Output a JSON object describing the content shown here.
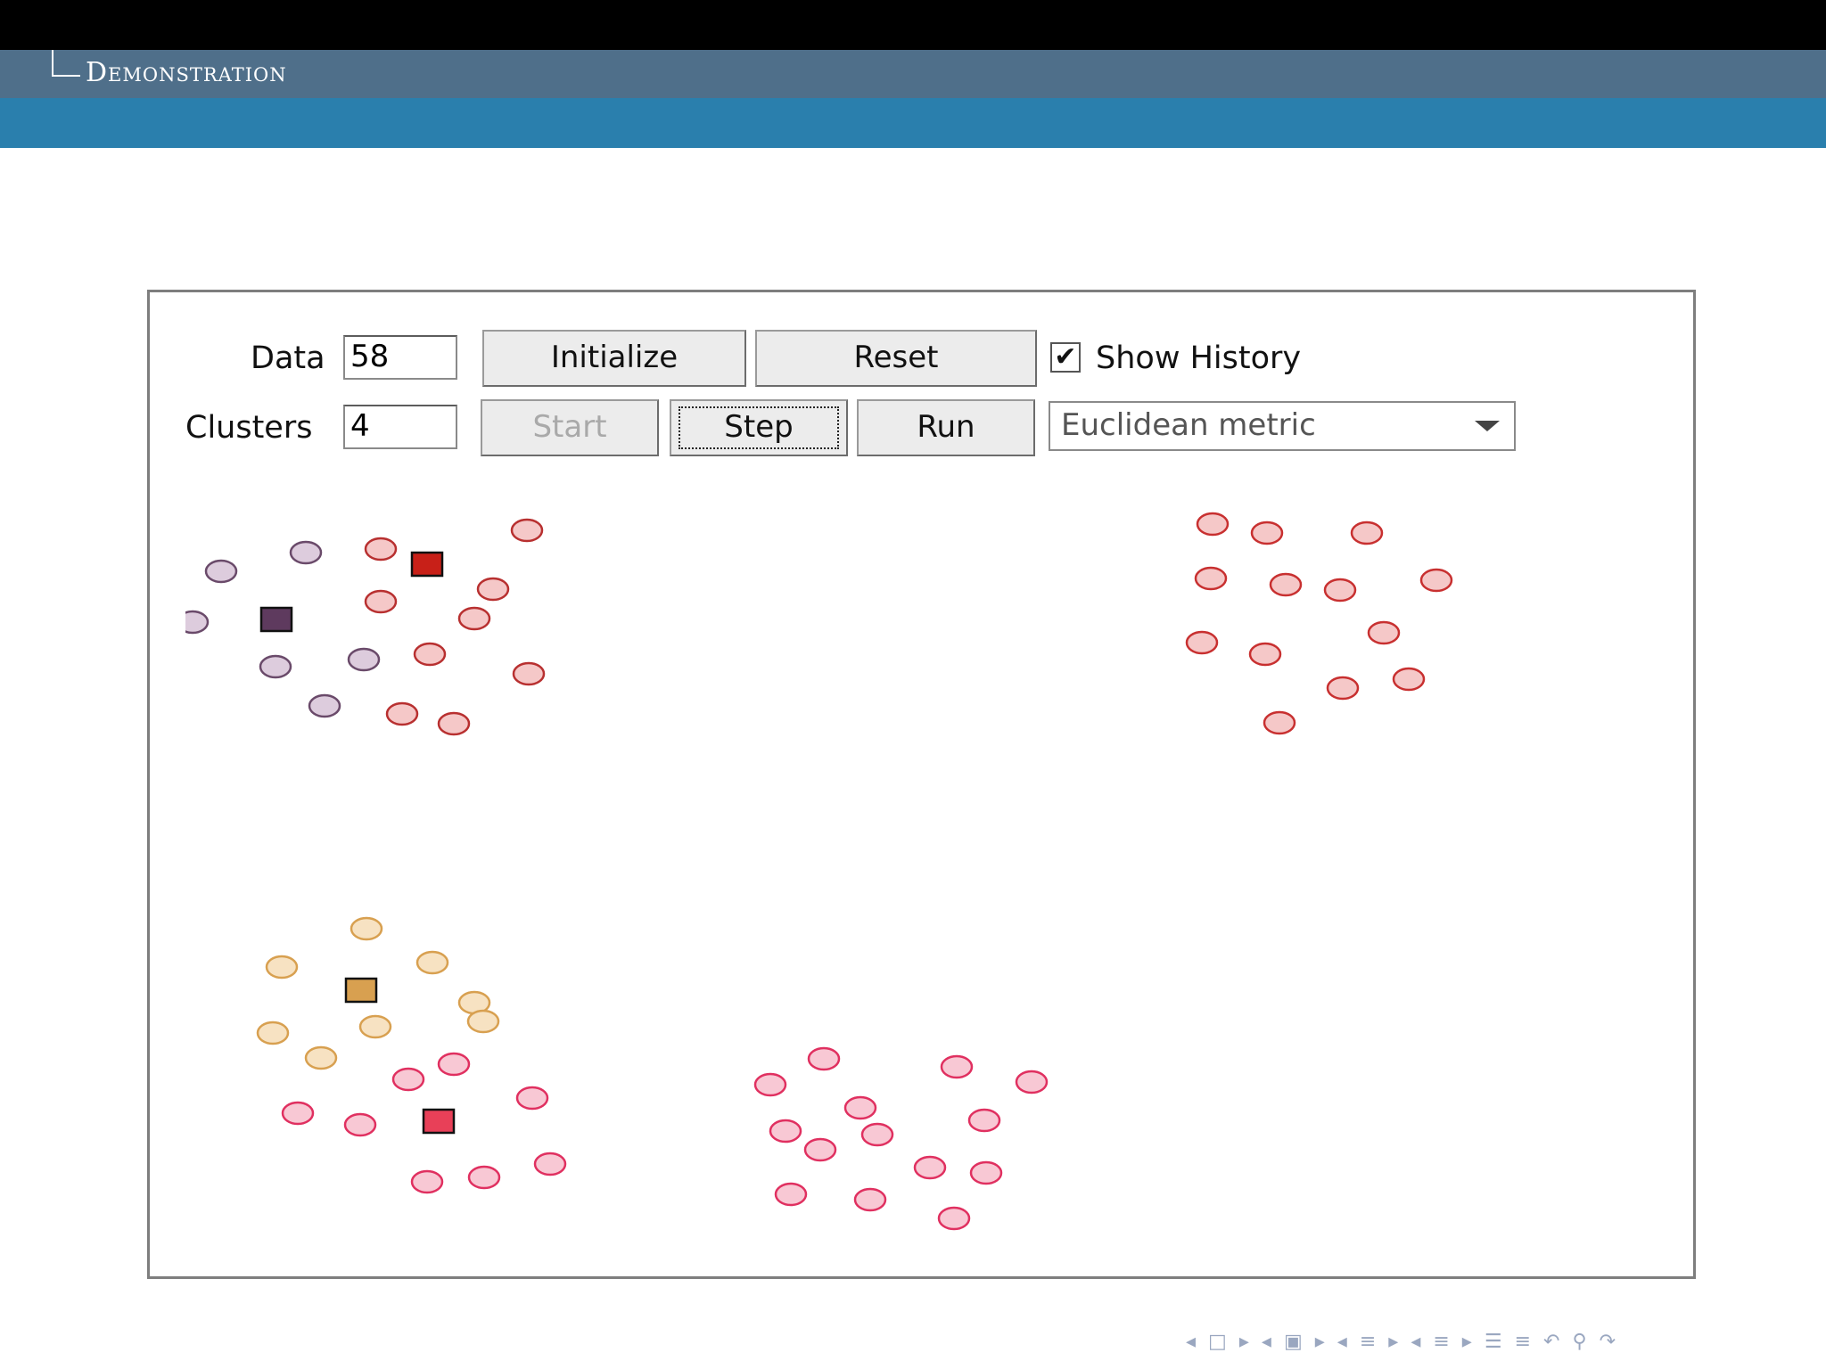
{
  "header": {
    "section_title": "Demonstration"
  },
  "controls": {
    "data_label": "Data",
    "data_value": "58",
    "clusters_label": "Clusters",
    "clusters_value": "4",
    "initialize_label": "Initialize",
    "reset_label": "Reset",
    "show_history_label": "Show History",
    "show_history_checked": true,
    "start_label": "Start",
    "start_enabled": false,
    "step_label": "Step",
    "run_label": "Run",
    "metric_selected": "Euclidean metric"
  },
  "colors": {
    "frame_top": "#000000",
    "section_bar": "#4f6f8a",
    "band": "#2a7fad",
    "nav_icons": "#9aa7c0"
  },
  "nav_icons": [
    "arrow-left-icon",
    "frame-icon",
    "arrow-right-icon",
    "arrow-left-icon",
    "subsection-icon",
    "arrow-right-icon",
    "arrow-left-icon",
    "section-icon",
    "arrow-right-icon",
    "arrow-left-icon",
    "list-icon",
    "arrow-right-icon",
    "toc-icon",
    "toc-icon",
    "undo-icon",
    "search-icon",
    "redo-icon"
  ],
  "clusters": [
    {
      "name": "purple",
      "fill": "#ddccdd",
      "stroke": "#6a4a6a",
      "centroid": {
        "fill": "#5e3a5e"
      },
      "points": [
        [
          248,
          641
        ],
        [
          343,
          620
        ],
        [
          216,
          698
        ],
        [
          309,
          748
        ],
        [
          408,
          740
        ],
        [
          364,
          792
        ]
      ]
    },
    {
      "name": "dark-red",
      "fill": "#f5c8c8",
      "stroke": "#b83030",
      "centroid": {
        "fill": "#c82018"
      },
      "points": [
        [
          427,
          616
        ],
        [
          591,
          595
        ],
        [
          553,
          661
        ],
        [
          427,
          675
        ],
        [
          532,
          694
        ],
        [
          482,
          734
        ],
        [
          593,
          756
        ],
        [
          451,
          801
        ],
        [
          509,
          812
        ]
      ]
    },
    {
      "name": "orange",
      "fill": "#f7e2c2",
      "stroke": "#d8a050",
      "centroid": {
        "fill": "#d8a050"
      },
      "points": [
        [
          411,
          1042
        ],
        [
          316,
          1085
        ],
        [
          485,
          1080
        ],
        [
          532,
          1125
        ],
        [
          542,
          1146
        ],
        [
          421,
          1152
        ],
        [
          306,
          1159
        ],
        [
          360,
          1187
        ]
      ]
    },
    {
      "name": "pink",
      "fill": "#f8c8d4",
      "stroke": "#e03060",
      "centroid": {
        "fill": "#e84058"
      },
      "points": [
        [
          509,
          1194
        ],
        [
          458,
          1211
        ],
        [
          597,
          1232
        ],
        [
          334,
          1249
        ],
        [
          404,
          1262
        ],
        [
          617,
          1306
        ],
        [
          479,
          1326
        ],
        [
          543,
          1321
        ],
        [
          924,
          1188
        ],
        [
          1073,
          1197
        ],
        [
          1157,
          1214
        ],
        [
          864,
          1217
        ],
        [
          965,
          1243
        ],
        [
          1104,
          1257
        ],
        [
          881,
          1269
        ],
        [
          984,
          1273
        ],
        [
          920,
          1290
        ],
        [
          1043,
          1310
        ],
        [
          1106,
          1316
        ],
        [
          887,
          1340
        ],
        [
          976,
          1346
        ],
        [
          1070,
          1367
        ]
      ]
    },
    {
      "name": "right-red",
      "fill": "#f5c8c8",
      "stroke": "#c83030",
      "centroid": null,
      "points": [
        [
          1360,
          588
        ],
        [
          1421,
          598
        ],
        [
          1533,
          598
        ],
        [
          1358,
          649
        ],
        [
          1442,
          656
        ],
        [
          1503,
          662
        ],
        [
          1611,
          651
        ],
        [
          1552,
          710
        ],
        [
          1348,
          721
        ],
        [
          1419,
          734
        ],
        [
          1580,
          762
        ],
        [
          1506,
          772
        ],
        [
          1435,
          811
        ]
      ]
    }
  ]
}
